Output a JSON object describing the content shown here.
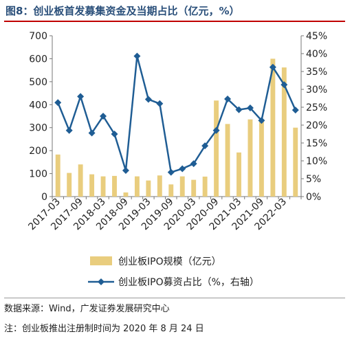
{
  "title": "图8：创业板首发募集资金及当期占比（亿元，%）",
  "source": "数据来源：Wind，广发证券发展研究中心",
  "note": "注：创业板推出注册制时间为 2020 年 8 月 24 日",
  "colors": {
    "bar": "#e9cd7e",
    "line": "#1f5d94",
    "title": "#2a4f7a",
    "rule": "#c00000"
  },
  "chart_data": {
    "type": "bar",
    "x_tick_labels": [
      "2017-03",
      "2017-09",
      "2018-03",
      "2018-09",
      "2019-03",
      "2019-09",
      "2020-03",
      "2020-09",
      "2021-03",
      "2021-09",
      "2022-03"
    ],
    "left_axis": {
      "min": 0,
      "max": 700,
      "ticks": [
        0,
        100,
        200,
        300,
        400,
        500,
        600,
        700
      ]
    },
    "right_axis": {
      "min": 0,
      "max": 45,
      "ticks": [
        "0%",
        "5%",
        "10%",
        "15%",
        "20%",
        "25%",
        "30%",
        "35%",
        "40%",
        "45%"
      ]
    },
    "series": [
      {
        "name": "创业板IPO规模（亿元）",
        "type": "bar",
        "axis": "left",
        "values": [
          183,
          103,
          140,
          97,
          88,
          90,
          18,
          88,
          70,
          92,
          53,
          88,
          73,
          87,
          418,
          316,
          192,
          336,
          330,
          600,
          562,
          300
        ]
      },
      {
        "name": "创业板IPO募资占比（%，右轴）",
        "type": "line",
        "axis": "right",
        "values": [
          26.3,
          18.5,
          28,
          17.8,
          22.5,
          17.5,
          7.3,
          39.3,
          27.2,
          26.0,
          6.8,
          7.8,
          9.2,
          14.2,
          18.5,
          27.3,
          24.3,
          24.8,
          21.3,
          36.2,
          31.3,
          24.2
        ]
      }
    ],
    "legend_position": "bottom"
  }
}
